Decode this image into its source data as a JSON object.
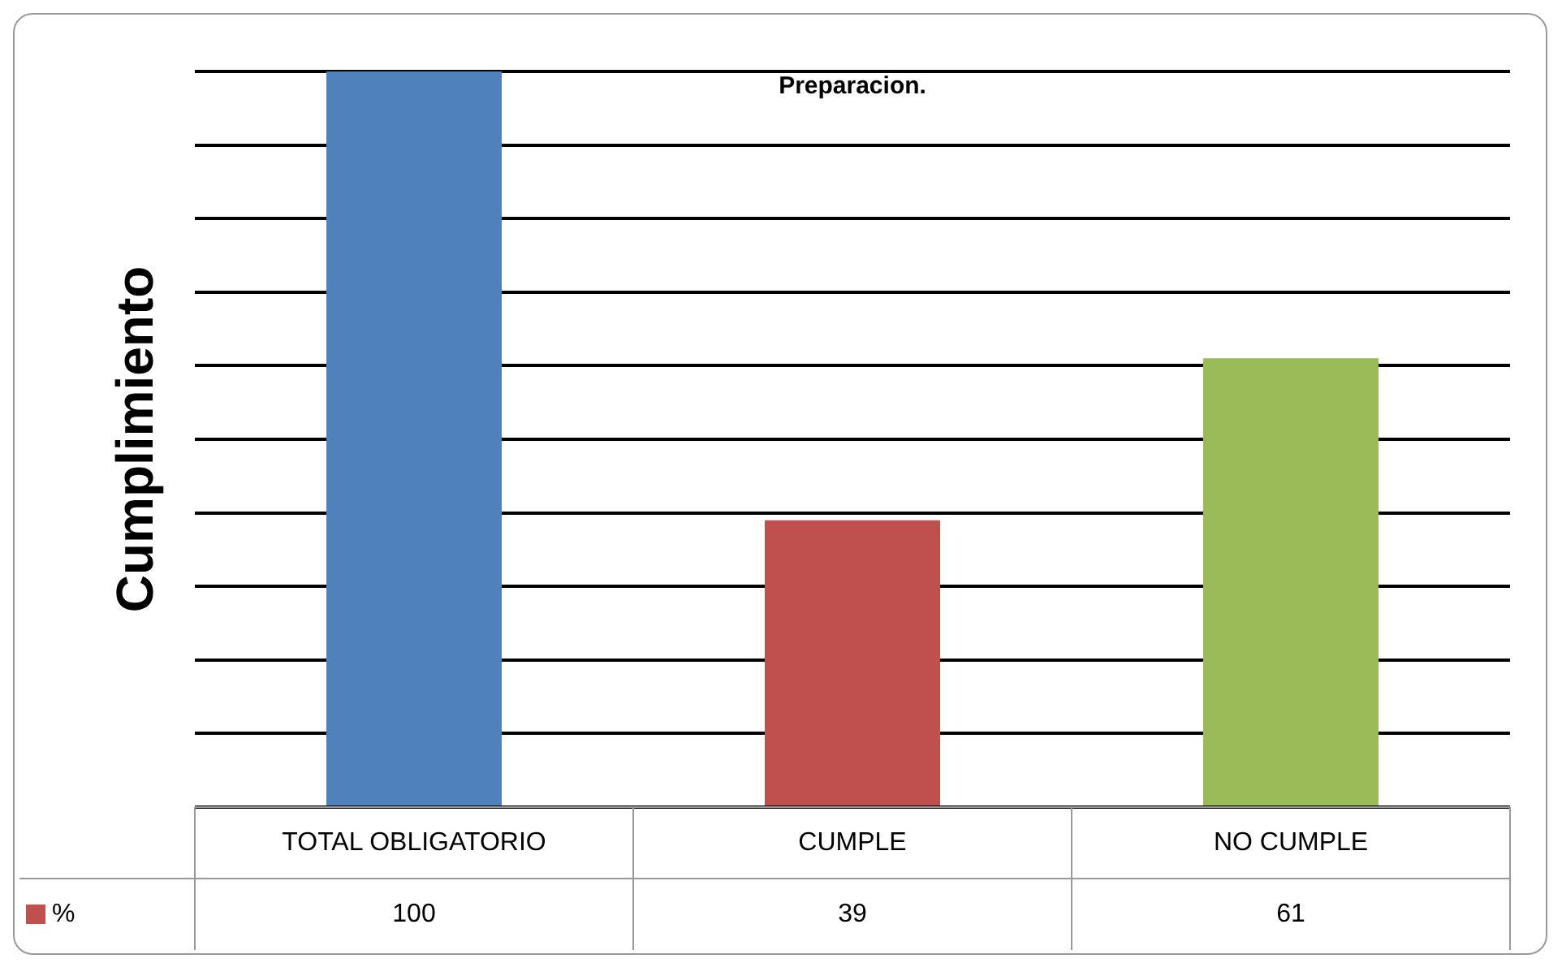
{
  "chart_data": {
    "type": "bar",
    "title": "Preparacion.",
    "ylabel": "Cumplimiento",
    "categories": [
      "TOTAL OBLIGATORIO",
      "CUMPLE",
      "NO CUMPLE"
    ],
    "series": [
      {
        "name": "%",
        "color": "#c0504d",
        "colors": [
          "#4f81bd",
          "#c0504d",
          "#9bbb59"
        ],
        "values": [
          100,
          39,
          61
        ]
      }
    ],
    "ylim": [
      0,
      100
    ],
    "yticks": [
      {
        "value": 0,
        "label": null
      },
      {
        "value": 10,
        "label": null
      },
      {
        "value": 20,
        "label": null
      },
      {
        "value": 30,
        "label": null
      },
      {
        "value": 40,
        "label": null
      },
      {
        "value": 50,
        "label": null
      },
      {
        "value": 60,
        "label": null
      },
      {
        "value": 70,
        "label": null
      },
      {
        "value": 80,
        "label": null
      },
      {
        "value": 90,
        "label": null
      },
      {
        "value": 100,
        "label": null
      }
    ],
    "grid": "y",
    "data_labels": true,
    "legend": "bottom left"
  }
}
